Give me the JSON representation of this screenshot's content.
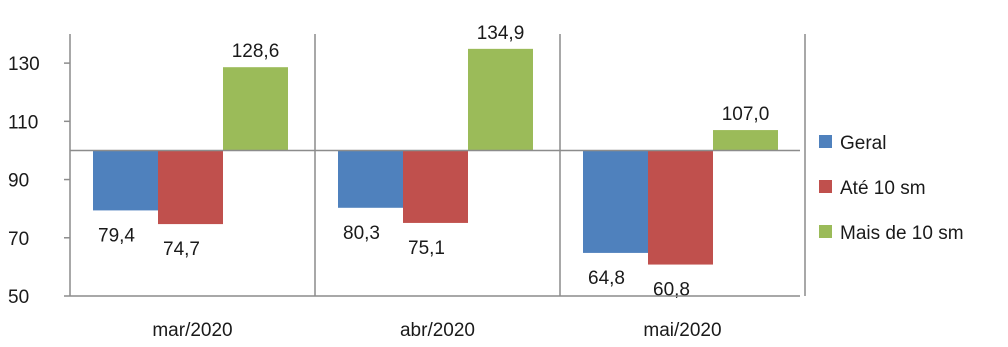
{
  "chart_data": {
    "type": "bar",
    "categories": [
      "mar/2020",
      "abr/2020",
      "mai/2020"
    ],
    "baseline": 100,
    "ylim": [
      50,
      140
    ],
    "yticks": [
      50,
      70,
      90,
      110,
      130
    ],
    "series": [
      {
        "name": "Geral",
        "color": "#4f81bd",
        "values": [
          79.4,
          80.3,
          64.8
        ],
        "labels": [
          "79,4",
          "80,3",
          "64,8"
        ]
      },
      {
        "name": "Até 10 sm",
        "color": "#c0504d",
        "values": [
          74.7,
          75.1,
          60.8
        ],
        "labels": [
          "74,7",
          "75,1",
          "60,8"
        ]
      },
      {
        "name": "Mais de 10 sm",
        "color": "#9bbb59",
        "values": [
          128.6,
          134.9,
          107.0
        ],
        "labels": [
          "128,6",
          "134,9",
          "107,0"
        ]
      }
    ],
    "legend_position": "right",
    "grid": false
  }
}
